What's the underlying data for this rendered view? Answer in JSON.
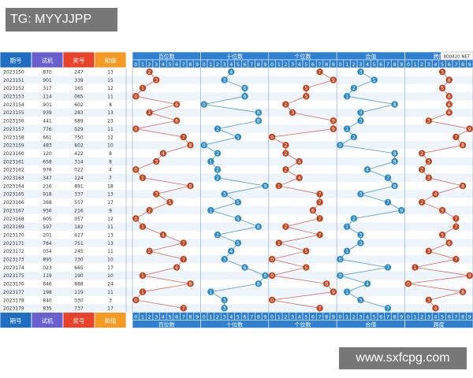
{
  "watermark_top": "TG: MYYJJPP",
  "watermark_bottom": "www.sxfcpg.com",
  "site_tag": "800820.NET",
  "colors": {
    "hdr_blue": "#1f6ec2",
    "hdr_purple": "#6a5fcf",
    "hdr_red": "#e8432a",
    "hdr_orange": "#f59a23",
    "zone_hdr": "#2f80d0",
    "ball_red": "#c0451e",
    "ball_blue": "#2d8bc7",
    "line_red": "#d9776b",
    "line_blue": "#5aa2d6",
    "row_alt": "#eef4fb"
  },
  "headers": {
    "period": "期号",
    "test": "试机",
    "draw": "奖号",
    "sum": "和值"
  },
  "zones": [
    {
      "label": "百位数",
      "type": "red"
    },
    {
      "label": "十位数",
      "type": "blue"
    },
    {
      "label": "个位数",
      "type": "red"
    },
    {
      "label": "合值",
      "type": "blue"
    },
    {
      "label": "跨度",
      "type": "red"
    }
  ],
  "digits": [
    "0",
    "1",
    "2",
    "3",
    "4",
    "5",
    "6",
    "7",
    "8",
    "9"
  ],
  "chart_data": {
    "type": "table",
    "columns": [
      "期号",
      "试机",
      "奖号",
      "和值"
    ],
    "rows": [
      [
        "2023150",
        "870",
        "247",
        "13"
      ],
      [
        "2023151",
        "901",
        "339",
        "15"
      ],
      [
        "2023152",
        "317",
        "165",
        "12"
      ],
      [
        "2023153",
        "114",
        "065",
        "11"
      ],
      [
        "2023154",
        "901",
        "602",
        "8"
      ],
      [
        "2023155",
        "939",
        "283",
        "13"
      ],
      [
        "2023156",
        "441",
        "689",
        "23"
      ],
      [
        "2023157",
        "776",
        "029",
        "11"
      ],
      [
        "2023158",
        "661",
        "750",
        "12"
      ],
      [
        "2023159",
        "483",
        "802",
        "10"
      ],
      [
        "2023160",
        "120",
        "422",
        "8"
      ],
      [
        "2023161",
        "658",
        "314",
        "8"
      ],
      [
        "2023162",
        "978",
        "022",
        "4"
      ],
      [
        "2023163",
        "347",
        "124",
        "7"
      ],
      [
        "2023164",
        "216",
        "891",
        "18"
      ],
      [
        "2023165",
        "918",
        "337",
        "13"
      ],
      [
        "2023166",
        "368",
        "557",
        "17"
      ],
      [
        "2023167",
        "956",
        "216",
        "9"
      ],
      [
        "2023168",
        "605",
        "057",
        "12"
      ],
      [
        "2023169",
        "597",
        "182",
        "11"
      ],
      [
        "2023170",
        "201",
        "427",
        "13"
      ],
      [
        "2023171",
        "784",
        "751",
        "13"
      ],
      [
        "2023172",
        "054",
        "245",
        "11"
      ],
      [
        "2023173",
        "895",
        "730",
        "10"
      ],
      [
        "2023174",
        "023",
        "665",
        "17"
      ],
      [
        "2023175",
        "119",
        "190",
        "10"
      ],
      [
        "2023176",
        "846",
        "888",
        "24"
      ],
      [
        "2023177",
        "198",
        "119",
        "11"
      ],
      [
        "2023178",
        "840",
        "030",
        "3"
      ],
      [
        "2023179",
        "835",
        "737",
        "17"
      ]
    ]
  }
}
